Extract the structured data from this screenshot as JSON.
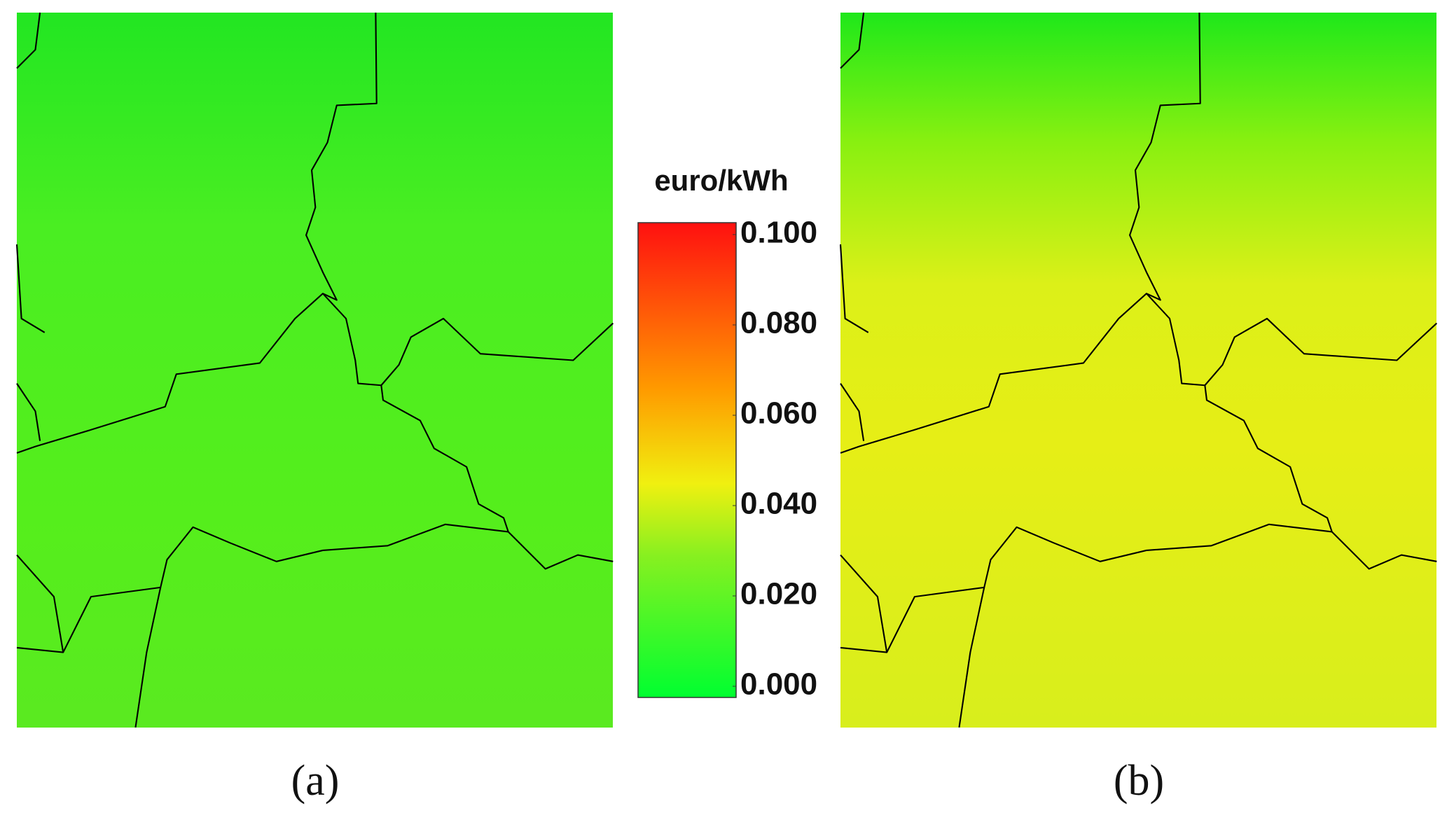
{
  "colorbar": {
    "title": "euro/kWh",
    "range": [
      0,
      0.1
    ],
    "ticks": [
      {
        "value": 0.1,
        "label": "0.100"
      },
      {
        "value": 0.08,
        "label": "0.080"
      },
      {
        "value": 0.06,
        "label": "0.060"
      },
      {
        "value": 0.04,
        "label": "0.040"
      },
      {
        "value": 0.02,
        "label": "0.020"
      },
      {
        "value": 0,
        "label": "0.000"
      }
    ]
  },
  "panels": [
    {
      "label": "(a)"
    },
    {
      "label": "(b)"
    }
  ]
}
